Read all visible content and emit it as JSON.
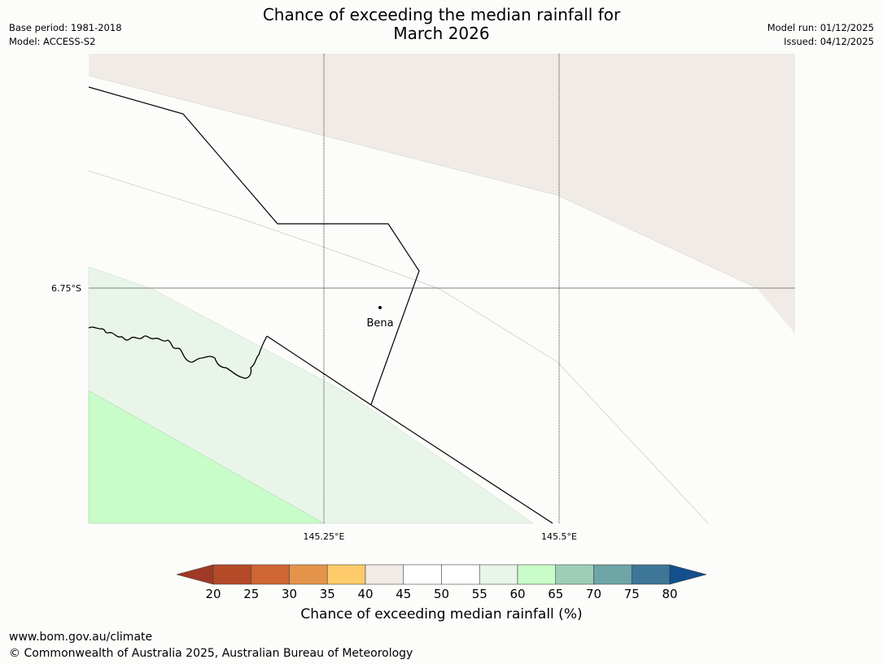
{
  "header": {
    "title_line1": "Chance of exceeding the median rainfall for",
    "title_line2": "March 2026",
    "base_period": "Base period: 1981-2018",
    "model": "Model: ACCESS-S2",
    "model_run": "Model run: 01/12/2025",
    "issued": "Issued: 04/12/2025"
  },
  "map": {
    "lat_label": "6.75°S",
    "lon_labels": [
      "145.25°E",
      "145.5°E"
    ],
    "place": "Bena",
    "colors": {
      "band_40_45": "#f0ebe6",
      "band_55_60": "#eaf5ea",
      "band_60_65": "#c8fcc8",
      "background": "#fcfdfa"
    }
  },
  "colorbar": {
    "label": "Chance of exceeding median rainfall (%)",
    "ticks": [
      "20",
      "25",
      "30",
      "35",
      "40",
      "45",
      "50",
      "55",
      "60",
      "65",
      "70",
      "75",
      "80"
    ],
    "colors": [
      "#9e3a26",
      "#b54a28",
      "#cf6634",
      "#e4944a",
      "#fecb6a",
      "#f0ebe6",
      "#ffffff",
      "#ffffff",
      "#eaf5ea",
      "#c8fcc8",
      "#9dcfb8",
      "#6ea6a8",
      "#3d7698",
      "#124f8c"
    ]
  },
  "footer": {
    "url": "www.bom.gov.au/climate",
    "copyright": "© Commonwealth of Australia 2025, Australian Bureau of Meteorology"
  }
}
